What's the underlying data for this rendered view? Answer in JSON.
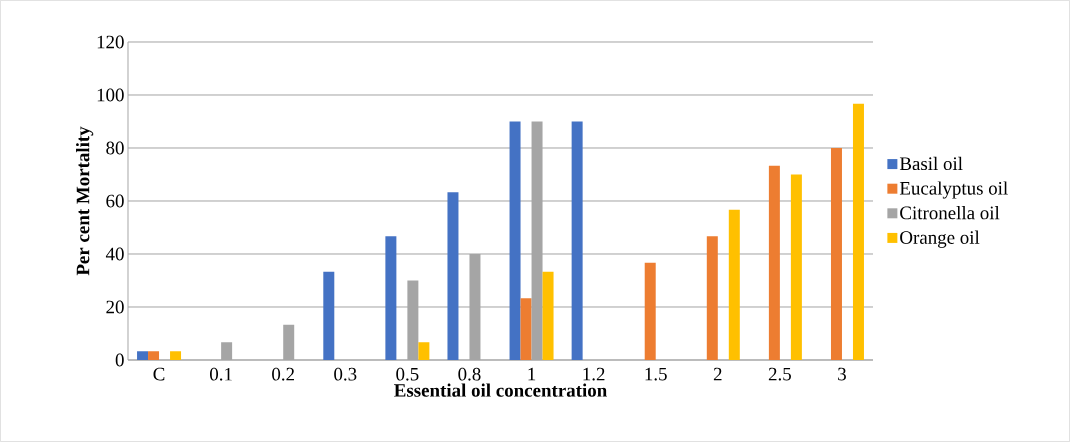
{
  "chart_data": {
    "type": "bar",
    "xlabel": "Essential oil concentration",
    "ylabel": "Per cent Mortality",
    "categories": [
      "C",
      "0.1",
      "0.2",
      "0.3",
      "0.5",
      "0.8",
      "1",
      "1.2",
      "1.5",
      "2",
      "2.5",
      "3"
    ],
    "series": [
      {
        "name": "Basil oil",
        "color": "#4472c4",
        "values": [
          3.3,
          null,
          null,
          33.3,
          46.7,
          63.3,
          90,
          90,
          null,
          null,
          null,
          null
        ]
      },
      {
        "name": "Eucalyptus oil",
        "color": "#ed7d31",
        "values": [
          3.3,
          null,
          null,
          null,
          null,
          null,
          23.3,
          null,
          36.7,
          46.7,
          73.3,
          80
        ]
      },
      {
        "name": "Citronella oil",
        "color": "#a5a5a5",
        "values": [
          null,
          6.7,
          13.3,
          null,
          30,
          40,
          90,
          null,
          null,
          null,
          null,
          null
        ]
      },
      {
        "name": "Orange oil",
        "color": "#ffc000",
        "values": [
          3.3,
          null,
          null,
          null,
          6.7,
          null,
          33.3,
          null,
          null,
          56.7,
          70,
          96.7
        ]
      }
    ],
    "ylim": [
      0,
      120
    ],
    "yticks": [
      0,
      20,
      40,
      60,
      80,
      100,
      120
    ],
    "grid": "y",
    "legend": "right"
  }
}
